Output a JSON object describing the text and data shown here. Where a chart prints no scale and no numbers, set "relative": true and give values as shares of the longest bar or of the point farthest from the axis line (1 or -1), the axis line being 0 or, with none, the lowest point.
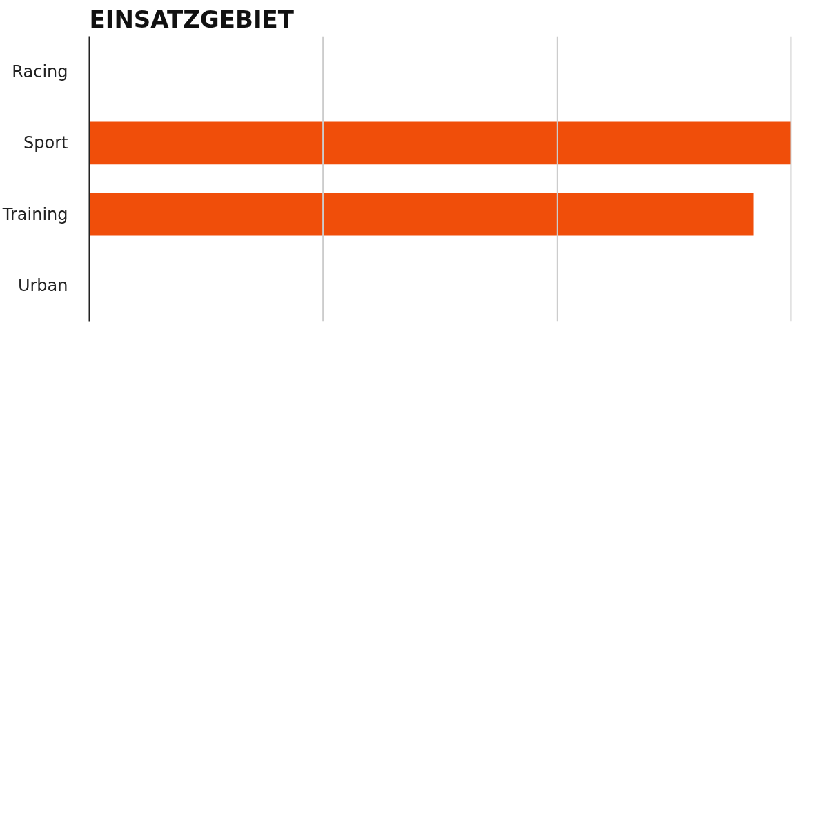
{
  "chart_data": {
    "type": "bar",
    "orientation": "horizontal",
    "title": "EINSATZGEBIET",
    "categories": [
      "Racing",
      "Sport",
      "Training",
      "Urban"
    ],
    "values": [
      0,
      1,
      0.947,
      0
    ],
    "color": "#f04e0a",
    "relative": true,
    "ref_lines": [
      {
        "axis": "x",
        "value": 0.333,
        "color": "#cccccc"
      },
      {
        "axis": "x",
        "value": 0.667,
        "color": "#cccccc"
      },
      {
        "axis": "x",
        "value": 1,
        "color": "#cccccc"
      }
    ]
  }
}
